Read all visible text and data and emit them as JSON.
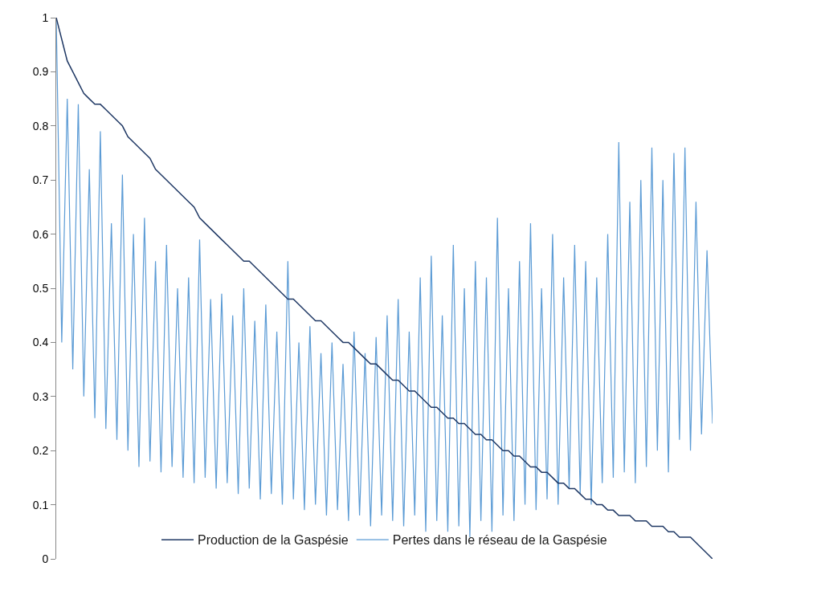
{
  "chart_data": {
    "type": "line",
    "categories": [
      null,
      null,
      null,
      null,
      null,
      null,
      null,
      null,
      null,
      null,
      null,
      null,
      null,
      null,
      null,
      null,
      null,
      null,
      null,
      null,
      null,
      null,
      null,
      null,
      null,
      null,
      null,
      null,
      null,
      null,
      null,
      null,
      null,
      null,
      null,
      null,
      null,
      null,
      null,
      null,
      null,
      null,
      null,
      null,
      null,
      null,
      null,
      null,
      null,
      null,
      null,
      null,
      null,
      null,
      null,
      null,
      null,
      null,
      null,
      null,
      null,
      null,
      null,
      null,
      null,
      null,
      null,
      null,
      null,
      null,
      null,
      null,
      null,
      null,
      null,
      null,
      null,
      null,
      null,
      null,
      null,
      null,
      null,
      null,
      null,
      null,
      null,
      null,
      null,
      null,
      null,
      null,
      null,
      null,
      null,
      null,
      null,
      null,
      null,
      null,
      null,
      null,
      null,
      null,
      null,
      null,
      null,
      null,
      null,
      null,
      null,
      null,
      null,
      null,
      null,
      null,
      null,
      null,
      null,
      null
    ],
    "series": [
      {
        "name": "Production de la Gaspésie",
        "color": "#1f3864",
        "values": [
          1.0,
          0.96,
          0.92,
          0.9,
          0.88,
          0.86,
          0.85,
          0.84,
          0.84,
          0.83,
          0.82,
          0.81,
          0.8,
          0.78,
          0.77,
          0.76,
          0.75,
          0.74,
          0.72,
          0.71,
          0.7,
          0.69,
          0.68,
          0.67,
          0.66,
          0.65,
          0.63,
          0.62,
          0.61,
          0.6,
          0.59,
          0.58,
          0.57,
          0.56,
          0.55,
          0.55,
          0.54,
          0.53,
          0.52,
          0.51,
          0.5,
          0.49,
          0.48,
          0.48,
          0.47,
          0.46,
          0.45,
          0.44,
          0.44,
          0.43,
          0.42,
          0.41,
          0.4,
          0.4,
          0.39,
          0.38,
          0.37,
          0.36,
          0.36,
          0.35,
          0.34,
          0.33,
          0.33,
          0.32,
          0.31,
          0.31,
          0.3,
          0.29,
          0.28,
          0.28,
          0.27,
          0.26,
          0.26,
          0.25,
          0.25,
          0.24,
          0.23,
          0.23,
          0.22,
          0.22,
          0.21,
          0.2,
          0.2,
          0.19,
          0.19,
          0.18,
          0.17,
          0.17,
          0.16,
          0.16,
          0.15,
          0.14,
          0.14,
          0.13,
          0.13,
          0.12,
          0.11,
          0.11,
          0.1,
          0.1,
          0.09,
          0.09,
          0.08,
          0.08,
          0.08,
          0.07,
          0.07,
          0.07,
          0.06,
          0.06,
          0.06,
          0.05,
          0.05,
          0.04,
          0.04,
          0.04,
          0.03,
          0.02,
          0.01,
          0.0
        ]
      },
      {
        "name": "Pertes dans le réseau de la Gaspésie",
        "color": "#5b9bd5",
        "values": [
          1.0,
          0.4,
          0.85,
          0.35,
          0.84,
          0.3,
          0.72,
          0.26,
          0.79,
          0.24,
          0.62,
          0.22,
          0.71,
          0.2,
          0.6,
          0.17,
          0.63,
          0.18,
          0.55,
          0.16,
          0.58,
          0.17,
          0.5,
          0.15,
          0.52,
          0.14,
          0.59,
          0.15,
          0.48,
          0.13,
          0.49,
          0.14,
          0.45,
          0.12,
          0.5,
          0.13,
          0.44,
          0.11,
          0.47,
          0.12,
          0.42,
          0.1,
          0.55,
          0.11,
          0.4,
          0.09,
          0.43,
          0.1,
          0.38,
          0.08,
          0.4,
          0.09,
          0.36,
          0.07,
          0.42,
          0.08,
          0.38,
          0.06,
          0.41,
          0.08,
          0.45,
          0.07,
          0.48,
          0.06,
          0.42,
          0.08,
          0.52,
          0.05,
          0.56,
          0.07,
          0.45,
          0.05,
          0.58,
          0.06,
          0.5,
          0.04,
          0.55,
          0.07,
          0.52,
          0.05,
          0.63,
          0.08,
          0.5,
          0.07,
          0.55,
          0.1,
          0.62,
          0.09,
          0.5,
          0.11,
          0.6,
          0.1,
          0.52,
          0.13,
          0.58,
          0.12,
          0.55,
          0.1,
          0.52,
          0.14,
          0.6,
          0.15,
          0.77,
          0.16,
          0.66,
          0.14,
          0.7,
          0.17,
          0.76,
          0.2,
          0.7,
          0.16,
          0.75,
          0.22,
          0.76,
          0.2,
          0.66,
          0.23,
          0.57,
          0.25
        ]
      }
    ],
    "ylim": [
      0,
      1
    ],
    "yticks": [
      0,
      0.1,
      0.2,
      0.3,
      0.4,
      0.5,
      0.6,
      0.7,
      0.8,
      0.9,
      1
    ],
    "tick_labels": "y",
    "legend": "bottom",
    "marker": "none",
    "line_style": "solid"
  }
}
